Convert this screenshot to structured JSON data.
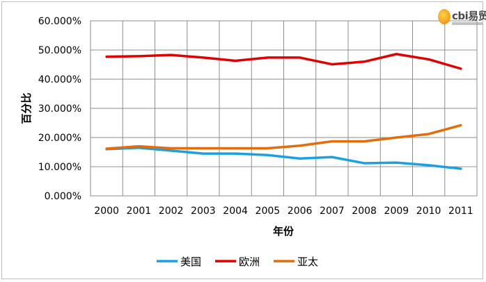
{
  "logo": {
    "text": "cbi易贸"
  },
  "chart_data": {
    "type": "line",
    "title": "",
    "xlabel": "年份",
    "ylabel": "百分比",
    "x": [
      "2000",
      "2001",
      "2002",
      "2003",
      "2004",
      "2005",
      "2006",
      "2007",
      "2008",
      "2009",
      "2010",
      "2011"
    ],
    "ylim": [
      0,
      0.6
    ],
    "yticks": [
      "0.000%",
      "10.000%",
      "20.000%",
      "30.000%",
      "40.000%",
      "50.000%",
      "60.000%"
    ],
    "grid": true,
    "legend_position": "bottom",
    "series": [
      {
        "name": "美国",
        "color": "#1ba1e2",
        "values": [
          0.16,
          0.165,
          0.155,
          0.145,
          0.145,
          0.14,
          0.128,
          0.133,
          0.112,
          0.114,
          0.105,
          0.093
        ]
      },
      {
        "name": "欧洲",
        "color": "#e00000",
        "values": [
          0.477,
          0.479,
          0.483,
          0.474,
          0.463,
          0.474,
          0.474,
          0.451,
          0.46,
          0.486,
          0.468,
          0.436
        ]
      },
      {
        "name": "亚太",
        "color": "#e46c0a",
        "values": [
          0.162,
          0.17,
          0.163,
          0.163,
          0.163,
          0.163,
          0.172,
          0.187,
          0.187,
          0.2,
          0.212,
          0.242
        ]
      }
    ]
  }
}
